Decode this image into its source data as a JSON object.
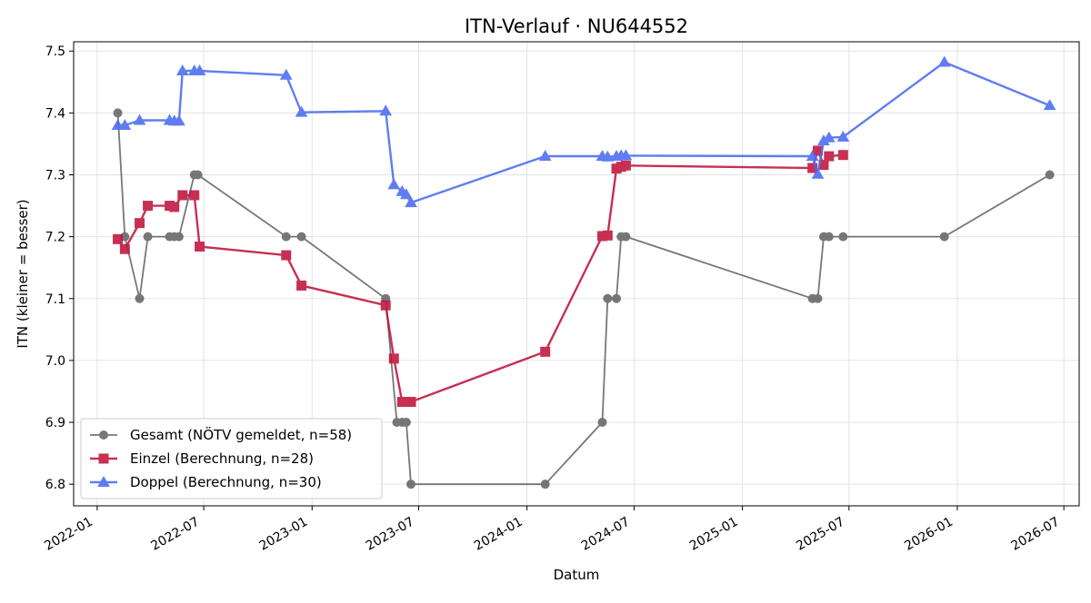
{
  "chart_data": {
    "type": "line",
    "title": "ITN-Verlauf · NU644552",
    "xlabel": "Datum",
    "ylabel": "ITN  (kleiner = besser)",
    "x_type": "date",
    "xlim": [
      "2021-11-22",
      "2026-07-27"
    ],
    "ylim": [
      6.765,
      7.515
    ],
    "x_ticks": [
      "2022-01-01",
      "2022-07-01",
      "2023-01-01",
      "2023-07-01",
      "2024-01-01",
      "2024-07-01",
      "2025-01-01",
      "2025-07-01",
      "2026-01-01",
      "2026-07-01"
    ],
    "x_tick_labels": [
      "2022-01",
      "2022-07",
      "2023-01",
      "2023-07",
      "2024-01",
      "2024-07",
      "2025-01",
      "2025-07",
      "2026-01",
      "2026-07"
    ],
    "y_ticks": [
      6.8,
      6.9,
      7.0,
      7.1,
      7.2,
      7.3,
      7.4,
      7.5
    ],
    "y_tick_labels": [
      "6.8",
      "6.9",
      "7.0",
      "7.1",
      "7.2",
      "7.3",
      "7.4",
      "7.5"
    ],
    "grid": true,
    "legend_position": "lower-left",
    "series": [
      {
        "name": "Gesamt (NÖTV gemeldet, n=58)",
        "color": "#444444",
        "marker": "circle",
        "points": [
          [
            "2022-02-05",
            7.4
          ],
          [
            "2022-02-17",
            7.2
          ],
          [
            "2022-03-14",
            7.1
          ],
          [
            "2022-03-28",
            7.2
          ],
          [
            "2022-05-04",
            7.2
          ],
          [
            "2022-05-12",
            7.2
          ],
          [
            "2022-05-20",
            7.2
          ],
          [
            "2022-06-15",
            7.3
          ],
          [
            "2022-06-21",
            7.3
          ],
          [
            "2022-11-18",
            7.2
          ],
          [
            "2022-12-14",
            7.2
          ],
          [
            "2023-05-06",
            7.1
          ],
          [
            "2023-05-25",
            6.9
          ],
          [
            "2023-06-03",
            6.9
          ],
          [
            "2023-06-10",
            6.9
          ],
          [
            "2023-06-18",
            6.8
          ],
          [
            "2024-02-01",
            6.8
          ],
          [
            "2024-05-08",
            6.9
          ],
          [
            "2024-05-17",
            7.1
          ],
          [
            "2024-06-01",
            7.1
          ],
          [
            "2024-06-09",
            7.2
          ],
          [
            "2024-06-17",
            7.2
          ],
          [
            "2025-04-30",
            7.1
          ],
          [
            "2025-05-09",
            7.1
          ],
          [
            "2025-05-19",
            7.2
          ],
          [
            "2025-05-28",
            7.2
          ],
          [
            "2025-06-21",
            7.2
          ],
          [
            "2025-12-10",
            7.2
          ],
          [
            "2026-06-07",
            7.3
          ]
        ]
      },
      {
        "name": "Einzel (Berechnung, n=28)",
        "color": "#c0143c",
        "marker": "square",
        "points": [
          [
            "2022-02-05",
            7.196
          ],
          [
            "2022-02-17",
            7.18
          ],
          [
            "2022-03-14",
            7.222
          ],
          [
            "2022-03-28",
            7.25
          ],
          [
            "2022-05-04",
            7.25
          ],
          [
            "2022-05-12",
            7.248
          ],
          [
            "2022-05-26",
            7.267
          ],
          [
            "2022-06-15",
            7.267
          ],
          [
            "2022-06-24",
            7.184
          ],
          [
            "2022-11-18",
            7.17
          ],
          [
            "2022-12-14",
            7.121
          ],
          [
            "2023-05-06",
            7.089
          ],
          [
            "2023-05-20",
            7.003
          ],
          [
            "2023-06-03",
            6.933
          ],
          [
            "2023-06-10",
            6.933
          ],
          [
            "2023-06-18",
            6.933
          ],
          [
            "2024-02-01",
            7.014
          ],
          [
            "2024-05-08",
            7.201
          ],
          [
            "2024-05-17",
            7.202
          ],
          [
            "2024-06-01",
            7.31
          ],
          [
            "2024-06-09",
            7.313
          ],
          [
            "2024-06-17",
            7.315
          ],
          [
            "2025-04-30",
            7.311
          ],
          [
            "2025-05-09",
            7.339
          ],
          [
            "2025-05-19",
            7.316
          ],
          [
            "2025-05-28",
            7.33
          ],
          [
            "2025-06-21",
            7.332
          ]
        ]
      },
      {
        "name": "Doppel (Berechnung, n=30)",
        "color": "#4a6cf0",
        "marker": "triangle",
        "points": [
          [
            "2022-02-05",
            7.38
          ],
          [
            "2022-02-17",
            7.38
          ],
          [
            "2022-03-14",
            7.388
          ],
          [
            "2022-05-04",
            7.388
          ],
          [
            "2022-05-12",
            7.387
          ],
          [
            "2022-05-20",
            7.387
          ],
          [
            "2022-05-26",
            7.468
          ],
          [
            "2022-06-15",
            7.468
          ],
          [
            "2022-06-24",
            7.468
          ],
          [
            "2022-11-18",
            7.461
          ],
          [
            "2022-12-14",
            7.401
          ],
          [
            "2023-05-06",
            7.403
          ],
          [
            "2023-05-20",
            7.284
          ],
          [
            "2023-06-03",
            7.273
          ],
          [
            "2023-06-10",
            7.268
          ],
          [
            "2023-06-18",
            7.255
          ],
          [
            "2024-02-01",
            7.33
          ],
          [
            "2024-05-08",
            7.33
          ],
          [
            "2024-05-17",
            7.329
          ],
          [
            "2024-06-01",
            7.33
          ],
          [
            "2024-06-09",
            7.331
          ],
          [
            "2024-06-17",
            7.331
          ],
          [
            "2025-04-30",
            7.33
          ],
          [
            "2025-05-09",
            7.301
          ],
          [
            "2025-05-19",
            7.355
          ],
          [
            "2025-05-28",
            7.36
          ],
          [
            "2025-06-21",
            7.361
          ],
          [
            "2025-12-10",
            7.482
          ],
          [
            "2026-06-07",
            7.412
          ]
        ]
      }
    ]
  }
}
